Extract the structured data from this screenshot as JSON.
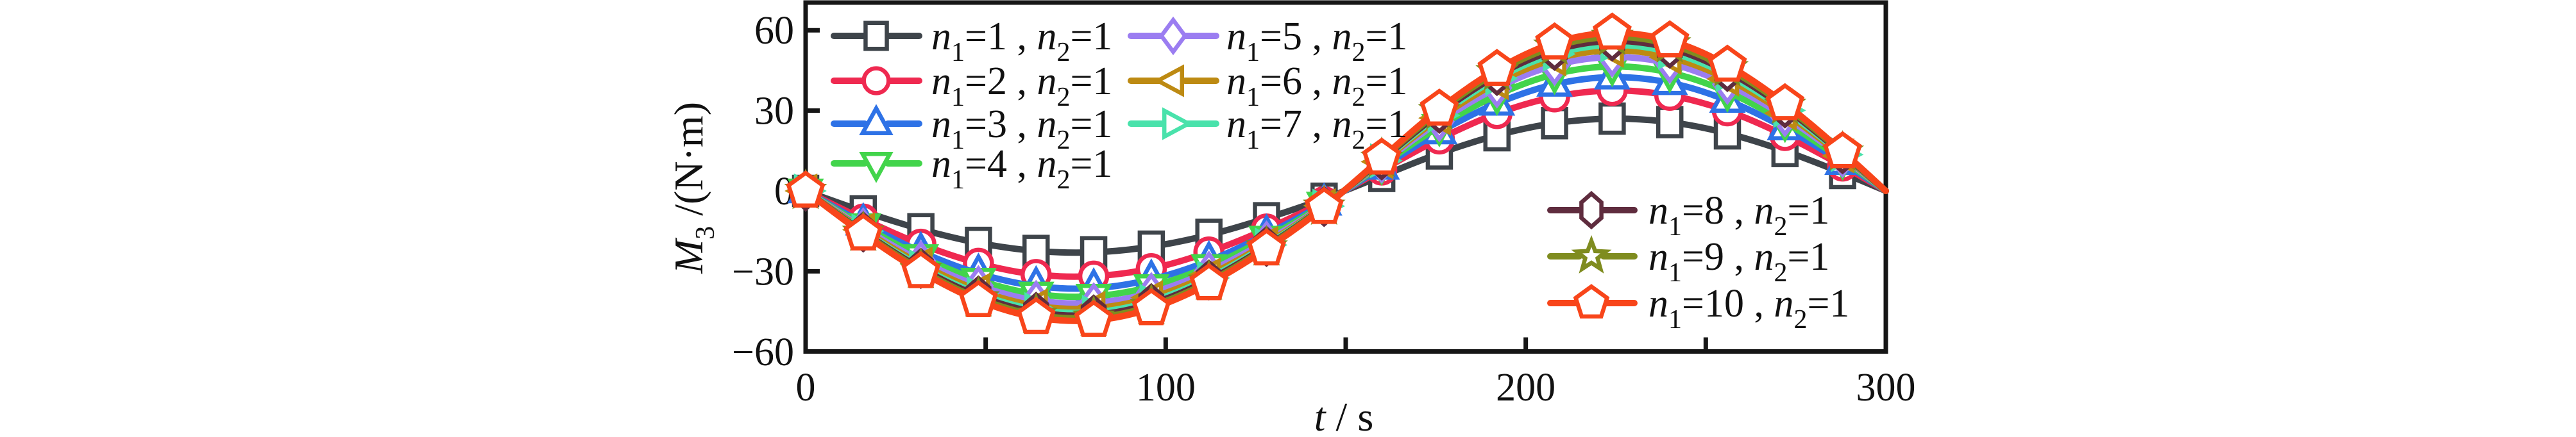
{
  "figure": {
    "background": "#ffffff",
    "frame_color": "#161616",
    "marker_fill": "#ffffff"
  },
  "chart_data": {
    "type": "line",
    "title": "",
    "xlabel": "t/s",
    "ylabel": "M3/(N·m)",
    "xlabel_parts": [
      {
        "t": "t",
        "italic": true
      },
      {
        "t": " / s"
      }
    ],
    "ylabel_parts": [
      {
        "t": "M",
        "italic": true
      },
      {
        "t": "3",
        "sub": true
      },
      {
        "t": " /(N·m)"
      }
    ],
    "xlim": [
      0,
      300
    ],
    "ylim": [
      -60,
      69
    ],
    "grid": false,
    "legend_position": "two groups: upper-left (n1=1..7, two columns), lower-right (n1=8..10)",
    "xticks": {
      "values": [
        0,
        50,
        100,
        150,
        200,
        250,
        300
      ],
      "labels": [
        "0",
        "",
        "100",
        "",
        "200",
        "",
        "300"
      ]
    },
    "yticks": {
      "values": [
        60,
        30,
        0,
        -30,
        -60
      ],
      "labels": [
        "60",
        "30",
        "0",
        "−30",
        "−60"
      ]
    },
    "x": [
      0,
      16,
      32,
      48,
      64,
      80,
      96,
      112,
      128,
      144,
      160,
      176,
      192,
      208,
      224,
      240,
      256,
      272,
      288,
      300
    ],
    "series": [
      {
        "label": "n1=1, n2=1",
        "n1": "1",
        "n2": "1",
        "color": "#3e444a",
        "marker": "square",
        "values": [
          0,
          -7.6,
          -14.3,
          -19.4,
          -22.4,
          -22.9,
          -20.8,
          -16.4,
          -10.2,
          -2.9,
          5.6,
          14.0,
          20.8,
          25.3,
          27.0,
          25.7,
          21.5,
          14.9,
          6.7,
          0
        ]
      },
      {
        "label": "n1=2, n2=1",
        "n1": "2",
        "n2": "1",
        "color": "#ef2950",
        "marker": "circle",
        "values": [
          0,
          -10.5,
          -19.9,
          -27.0,
          -31.2,
          -31.8,
          -29.0,
          -22.8,
          -14.2,
          -4.0,
          7.8,
          19.4,
          28.9,
          35.1,
          37.5,
          35.7,
          29.9,
          20.7,
          9.3,
          0
        ]
      },
      {
        "label": "n1=3, n2=1",
        "n1": "3",
        "n2": "1",
        "color": "#2e72e6",
        "marker": "triangle-up",
        "values": [
          0,
          -12.0,
          -22.7,
          -30.8,
          -35.5,
          -36.3,
          -33.0,
          -26.1,
          -16.2,
          -4.6,
          8.8,
          22.0,
          32.7,
          39.8,
          42.5,
          40.4,
          33.8,
          23.5,
          10.6,
          0
        ]
      },
      {
        "label": "n1=4, n2=1",
        "n1": "4",
        "n2": "1",
        "color": "#42d44b",
        "marker": "triangle-down",
        "values": [
          0,
          -13.0,
          -24.5,
          -33.3,
          -38.5,
          -39.3,
          -35.7,
          -28.2,
          -17.6,
          -4.9,
          9.7,
          24.1,
          35.8,
          43.6,
          46.5,
          44.2,
          37.0,
          25.7,
          11.6,
          0
        ]
      },
      {
        "label": "n1=5, n2=1",
        "n1": "5",
        "n2": "1",
        "color": "#9b7df1",
        "marker": "diamond",
        "values": [
          0,
          -13.8,
          -26.1,
          -35.4,
          -40.9,
          -41.8,
          -38.0,
          -30.0,
          -18.7,
          -5.3,
          10.4,
          25.9,
          38.5,
          46.9,
          50.0,
          47.6,
          39.8,
          27.7,
          12.5,
          0
        ]
      },
      {
        "label": "n1=6, n2=1",
        "n1": "6",
        "n2": "1",
        "color": "#bd8a12",
        "marker": "triangle-left",
        "values": [
          0,
          -14.5,
          -27.3,
          -37.1,
          -42.9,
          -43.8,
          -39.8,
          -31.4,
          -19.6,
          -5.5,
          10.9,
          27.2,
          40.4,
          49.2,
          52.5,
          49.9,
          41.8,
          29.0,
          13.1,
          0
        ]
      },
      {
        "label": "n1=7, n2=1",
        "n1": "7",
        "n2": "1",
        "color": "#49e2ab",
        "marker": "triangle-right",
        "values": [
          0,
          -15.0,
          -28.3,
          -38.4,
          -44.3,
          -45.3,
          -41.2,
          -32.5,
          -20.2,
          -5.7,
          11.3,
          28.2,
          42.0,
          51.1,
          54.5,
          51.8,
          43.4,
          30.1,
          13.6,
          0
        ]
      },
      {
        "label": "n1=8, n2=1",
        "n1": "8",
        "n2": "1",
        "color": "#5f2c3e",
        "marker": "hexagon",
        "values": [
          0,
          -15.3,
          -28.9,
          -39.2,
          -45.3,
          -46.3,
          -42.1,
          -33.2,
          -20.7,
          -5.8,
          11.6,
          29.0,
          43.1,
          52.5,
          56.0,
          53.3,
          44.6,
          31.0,
          13.9,
          0
        ]
      },
      {
        "label": "n1=9, n2=1",
        "n1": "9",
        "n2": "1",
        "color": "#7f8c1f",
        "marker": "star",
        "values": [
          0,
          -15.6,
          -29.5,
          -40.1,
          -46.3,
          -47.3,
          -43.0,
          -33.9,
          -21.1,
          -5.9,
          12.0,
          29.8,
          44.3,
          53.9,
          57.5,
          54.7,
          45.8,
          31.8,
          14.3,
          0
        ]
      },
      {
        "label": "n1=10, n2=1",
        "n1": "10",
        "n2": "1",
        "color": "#f8451a",
        "marker": "pentagon",
        "values": [
          0,
          -16.0,
          -30.1,
          -40.9,
          -47.2,
          -48.3,
          -43.9,
          -34.6,
          -21.6,
          -6.1,
          12.3,
          30.6,
          45.4,
          55.3,
          59.0,
          56.1,
          47.0,
          32.6,
          14.7,
          0
        ]
      }
    ]
  }
}
